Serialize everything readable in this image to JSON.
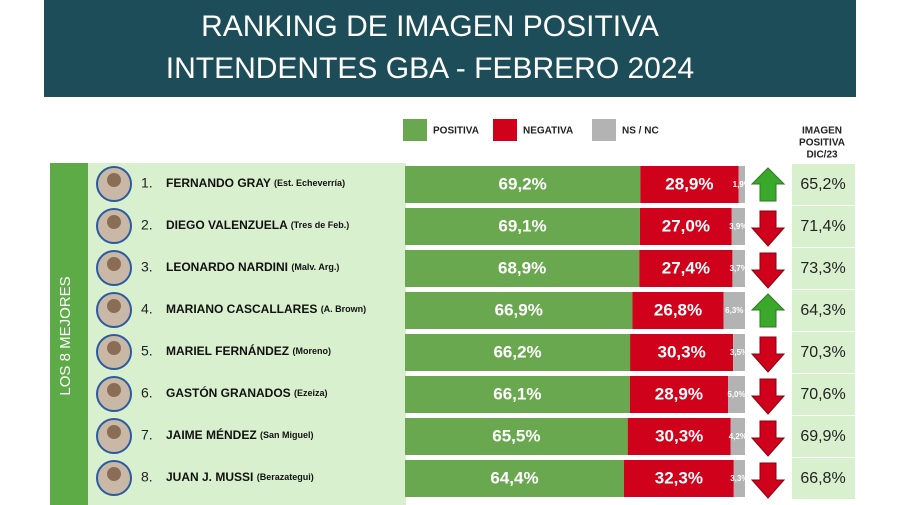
{
  "chart_data": {
    "type": "stacked-bar",
    "title": "RANKING DE IMAGEN POSITIVA",
    "subtitle": "INTENDENTES GBA - FEBRERO 2024",
    "group_label": "LOS 8 MEJORES",
    "ranks": [
      "1.",
      "2.",
      "3.",
      "4.",
      "5.",
      "6.",
      "7.",
      "8."
    ],
    "categories": [
      "FERNANDO GRAY",
      "DIEGO VALENZUELA",
      "LEONARDO NARDINI",
      "MARIANO CASCALLARES",
      "MARIEL FERNÁNDEZ",
      "GASTÓN GRANADOS",
      "JAIME MÉNDEZ",
      "JUAN J. MUSSI"
    ],
    "districts": [
      "(Est. Echeverría)",
      "(Tres de Feb.)",
      "(Malv. Arg.)",
      "(A. Brown)",
      "(Moreno)",
      "(Ezeiza)",
      "(San Miguel)",
      "(Berazategui)"
    ],
    "xlim": [
      0,
      100
    ],
    "series": [
      {
        "name": "POSITIVA",
        "color": "#6aa84f",
        "values": [
          69.2,
          69.1,
          68.9,
          66.9,
          66.2,
          66.1,
          65.5,
          64.4
        ],
        "value_labels": [
          "69,2%",
          "69,1%",
          "68,9%",
          "66,9%",
          "66,2%",
          "66,1%",
          "65,5%",
          "64,4%"
        ]
      },
      {
        "name": "NEGATIVA",
        "color": "#d0021b",
        "values": [
          28.9,
          27.0,
          27.4,
          26.8,
          30.3,
          28.9,
          30.3,
          32.3
        ],
        "value_labels": [
          "28,9%",
          "27,0%",
          "27,4%",
          "26,8%",
          "30,3%",
          "28,9%",
          "30,3%",
          "32,3%"
        ]
      },
      {
        "name": "NS / NC",
        "color": "#b3b3b3",
        "values": [
          1.9,
          3.9,
          3.7,
          6.3,
          3.5,
          5.0,
          4.2,
          3.3
        ],
        "value_labels": [
          "1,9%",
          "3,9%",
          "3,7%",
          "6,3%",
          "3,5%",
          "5,0%",
          "4,2%",
          "3,3%"
        ]
      }
    ],
    "previous": {
      "label_lines": [
        "IMAGEN",
        "POSITIVA",
        "DIC/23"
      ],
      "values": [
        65.2,
        71.4,
        73.3,
        64.3,
        70.3,
        70.6,
        69.9,
        66.8
      ],
      "value_labels": [
        "65,2%",
        "71,4%",
        "73,3%",
        "64,3%",
        "70,3%",
        "70,6%",
        "69,9%",
        "66,8%"
      ]
    },
    "up_color": "#3aa82a",
    "down_color": "#d0021b"
  }
}
